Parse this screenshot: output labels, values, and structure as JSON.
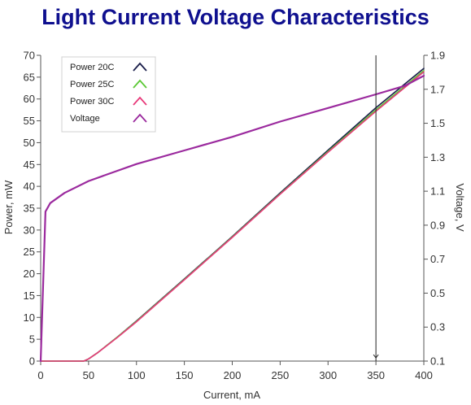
{
  "chart_data": {
    "type": "line",
    "title": "Light Current Voltage Characteristics",
    "xlabel": "Current, mA",
    "ylabel": "Power, mW",
    "y2label": "Voltage, V",
    "xlim": [
      0,
      400
    ],
    "ylim": [
      0,
      70
    ],
    "y2lim": [
      0.1,
      1.9
    ],
    "x_ticks": [
      0,
      50,
      100,
      150,
      200,
      250,
      300,
      350,
      400
    ],
    "y_ticks": [
      0,
      5,
      10,
      15,
      20,
      25,
      30,
      35,
      40,
      45,
      50,
      55,
      60,
      65,
      70
    ],
    "y2_ticks": [
      "0.1",
      "0.3",
      "0.5",
      "0.7",
      "0.9",
      "1.1",
      "1.3",
      "1.5",
      "1.7",
      "1.9"
    ],
    "grid": false,
    "legend_position": "top-left",
    "vertical_marker_x": 350,
    "series": [
      {
        "name": "Power 20C",
        "axis": "left",
        "color": "#1b1f4b",
        "x": [
          0,
          45,
          50,
          60,
          80,
          100,
          150,
          200,
          250,
          300,
          350,
          400
        ],
        "y": [
          0,
          0,
          0.5,
          2,
          5.5,
          9.2,
          18.8,
          28.5,
          38.5,
          48.3,
          58,
          67
        ]
      },
      {
        "name": "Power 25C",
        "axis": "left",
        "color": "#5cc936",
        "x": [
          0,
          45,
          50,
          60,
          80,
          100,
          150,
          200,
          250,
          300,
          350,
          400
        ],
        "y": [
          0,
          0,
          0.5,
          2,
          5.5,
          9.1,
          18.7,
          28.4,
          38.3,
          48,
          57.5,
          66.5
        ]
      },
      {
        "name": "Power 30C",
        "axis": "left",
        "color": "#e83a7a",
        "x": [
          0,
          45,
          50,
          60,
          80,
          100,
          150,
          200,
          250,
          300,
          350,
          400
        ],
        "y": [
          0,
          0,
          0.5,
          2,
          5.4,
          9,
          18.6,
          28.3,
          38.2,
          47.8,
          57.2,
          66.2
        ]
      },
      {
        "name": "Voltage",
        "axis": "right",
        "color": "#9b2a9e",
        "x": [
          0,
          5,
          10,
          25,
          50,
          75,
          100,
          150,
          200,
          250,
          300,
          350,
          380,
          400
        ],
        "y": [
          0.1,
          0.98,
          1.03,
          1.09,
          1.16,
          1.21,
          1.26,
          1.34,
          1.42,
          1.51,
          1.59,
          1.67,
          1.72,
          1.78
        ]
      }
    ]
  }
}
